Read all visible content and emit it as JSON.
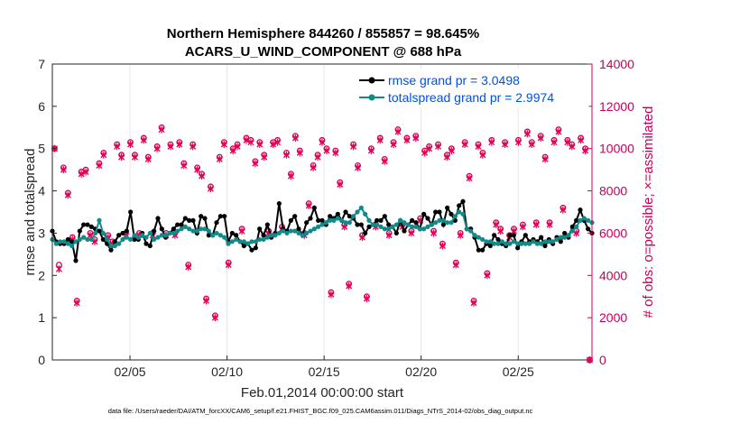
{
  "chart_data": {
    "type": "line",
    "title_line1": "Northern Hemisphere 844260 / 855857 = 98.645%",
    "title_line2": "ACARS_U_WIND_COMPONENT @ 688 hPa",
    "xlabel": "Feb.01,2014 00:00:00 start",
    "ylabel": "rmse and totalspread",
    "y2label": "# of obs: o=possible; ×=assimilated",
    "footnote": "data file: /Users/raeder/DAI/ATM_forcXX/CAM6_setup/f.e21.FHIST_BGC.f09_025.CAM6assim.011/Diags_NTrS_2014-02/obs_diag_output.nc",
    "xlim": [
      1,
      28.8
    ],
    "ylim": [
      0,
      7
    ],
    "y2lim": [
      0,
      14000
    ],
    "x_ticks": [
      5,
      10,
      15,
      20,
      25
    ],
    "x_tick_labels": [
      "02/05",
      "02/10",
      "02/15",
      "02/20",
      "02/25"
    ],
    "y_ticks": [
      "0",
      "1",
      "2",
      "3",
      "4",
      "5",
      "6",
      "7"
    ],
    "y2_ticks": [
      "0",
      "2000",
      "4000",
      "6000",
      "8000",
      "10000",
      "12000",
      "14000"
    ],
    "legend_position": "top-right",
    "series": [
      {
        "name": "rmse grand pr = 3.0498",
        "color": "#000000",
        "values": [
          3.05,
          2.8,
          2.75,
          2.75,
          2.85,
          2.8,
          2.35,
          3.05,
          3.2,
          3.2,
          3.15,
          3.1,
          3.05,
          2.85,
          2.75,
          2.6,
          2.8,
          2.95,
          3.0,
          3.05,
          3.5,
          2.85,
          2.85,
          3.0,
          2.75,
          2.7,
          3.05,
          3.35,
          3.1,
          2.9,
          3.0,
          3.1,
          3.2,
          3.2,
          3.35,
          3.3,
          3.3,
          3.0,
          3.4,
          3.35,
          2.95,
          2.95,
          3.25,
          3.4,
          3.4,
          2.8,
          3.0,
          2.95,
          2.8,
          2.7,
          2.75,
          2.6,
          2.65,
          3.1,
          2.95,
          3.2,
          2.9,
          3.0,
          3.7,
          3.1,
          3.05,
          3.3,
          3.4,
          3.1,
          2.95,
          3.25,
          3.35,
          3.6,
          3.3,
          3.3,
          3.2,
          3.4,
          3.35,
          3.45,
          3.3,
          3.5,
          3.4,
          3.35,
          3.2,
          3.2,
          3.0,
          3.15,
          3.2,
          3.3,
          3.3,
          3.4,
          3.2,
          3.15,
          3.0,
          3.3,
          3.05,
          3.2,
          3.3,
          3.25,
          3.1,
          3.45,
          3.35,
          3.2,
          3.5,
          3.5,
          3.2,
          3.6,
          3.45,
          3.3,
          3.65,
          3.75,
          3.1,
          3.1,
          2.9,
          2.6,
          2.6,
          2.75,
          2.7,
          2.95,
          2.85,
          2.75,
          2.7,
          2.95,
          2.95,
          2.65,
          2.8,
          2.95,
          2.8,
          2.85,
          2.8,
          2.9,
          2.7,
          2.85,
          2.75,
          2.9,
          2.8,
          3.0,
          2.9,
          3.15,
          3.3,
          3.55,
          3.3,
          3.1,
          3.0
        ]
      },
      {
        "name": "totalspread grand pr = 2.9974",
        "color": "#138a8a",
        "values": [
          2.85,
          2.75,
          2.8,
          2.8,
          2.75,
          2.7,
          2.8,
          2.85,
          2.9,
          2.85,
          2.85,
          3.0,
          3.3,
          3.0,
          2.85,
          2.7,
          2.7,
          2.75,
          2.85,
          2.9,
          2.85,
          2.95,
          2.9,
          2.95,
          2.9,
          3.0,
          2.85,
          2.9,
          2.95,
          2.95,
          3.0,
          3.0,
          3.05,
          3.1,
          3.15,
          3.1,
          3.05,
          3.05,
          3.1,
          3.1,
          3.05,
          2.95,
          3.0,
          2.95,
          2.9,
          2.75,
          2.8,
          2.85,
          2.8,
          2.8,
          2.75,
          2.8,
          2.8,
          2.85,
          2.85,
          2.9,
          2.95,
          2.95,
          3.0,
          3.05,
          3.0,
          3.05,
          3.05,
          3.0,
          2.95,
          3.0,
          3.05,
          3.1,
          3.15,
          3.2,
          3.25,
          3.3,
          3.3,
          3.35,
          3.3,
          3.25,
          3.25,
          3.4,
          3.5,
          3.6,
          3.45,
          3.3,
          3.2,
          3.2,
          3.15,
          3.1,
          3.1,
          3.15,
          3.2,
          3.3,
          3.25,
          3.2,
          3.15,
          3.15,
          3.1,
          3.1,
          3.15,
          3.2,
          3.25,
          3.3,
          3.3,
          3.25,
          3.25,
          3.4,
          3.5,
          3.45,
          3.1,
          3.05,
          2.95,
          2.9,
          2.85,
          2.8,
          2.8,
          2.75,
          2.75,
          2.8,
          2.75,
          2.75,
          2.8,
          2.75,
          2.75,
          2.75,
          2.75,
          2.8,
          2.75,
          2.75,
          2.8,
          2.8,
          2.8,
          2.85,
          2.9,
          2.9,
          2.95,
          3.05,
          3.15,
          3.3,
          3.35,
          3.3,
          3.25
        ]
      },
      {
        "name": "possible",
        "color": "#d0005f",
        "values": [
          10000,
          4500,
          9100,
          7900,
          5800,
          2800,
          8900,
          9000,
          6000,
          5700,
          9300,
          9800,
          5900,
          5600,
          10200,
          9700,
          6000,
          10300,
          9700,
          6000,
          10500,
          9600,
          6000,
          10100,
          11000,
          6000,
          10200,
          6000,
          10300,
          9300,
          4500,
          10200,
          9100,
          8800,
          2900,
          8200,
          2100,
          9600,
          10300,
          4600,
          10000,
          10200,
          6200,
          10500,
          10400,
          9400,
          10300,
          9700,
          6100,
          10300,
          10400,
          6300,
          9800,
          8800,
          10600,
          9900,
          6000,
          7400,
          9200,
          9700,
          10400,
          10000,
          3200,
          9900,
          8400,
          6400,
          3600,
          10200,
          9200,
          5900,
          3000,
          10000,
          6400,
          10500,
          9500,
          6000,
          10300,
          10900,
          6400,
          10500,
          6100,
          10600,
          6700,
          9900,
          10100,
          6100,
          10200,
          5500,
          9700,
          10000,
          4600,
          6000,
          10300,
          8700,
          2800,
          10200,
          9800,
          4100,
          10400,
          6500,
          6200,
          10300,
          5900,
          6200,
          10400,
          6400,
          10800,
          10300,
          6500,
          10600,
          9600,
          6500,
          10400,
          10900,
          7200,
          10400,
          10200,
          6100,
          10500,
          10000,
          0
        ]
      },
      {
        "name": "assimilated",
        "color": "#e6004f",
        "values": [
          10000,
          4300,
          9000,
          7800,
          5700,
          2700,
          8800,
          8900,
          5900,
          5600,
          9200,
          9700,
          5800,
          5500,
          10100,
          9600,
          5900,
          10200,
          9600,
          5900,
          10400,
          9500,
          5900,
          10000,
          10900,
          5900,
          10100,
          5900,
          10200,
          9200,
          4400,
          10100,
          9000,
          8700,
          2800,
          8100,
          2000,
          9500,
          10200,
          4500,
          9900,
          10100,
          6100,
          10400,
          10300,
          9300,
          10200,
          9600,
          6000,
          10200,
          10300,
          6200,
          9700,
          8700,
          10500,
          9800,
          5900,
          7300,
          9100,
          9600,
          10300,
          9900,
          3100,
          9800,
          8300,
          6300,
          3500,
          10100,
          9100,
          5800,
          2900,
          9900,
          6300,
          10400,
          9400,
          5900,
          10200,
          10800,
          6300,
          10400,
          6000,
          10500,
          6600,
          9800,
          10000,
          6000,
          10100,
          5400,
          9600,
          9900,
          4500,
          5900,
          10200,
          8600,
          2700,
          10100,
          9700,
          4000,
          10300,
          6400,
          6100,
          10200,
          5800,
          6100,
          10300,
          6300,
          10700,
          10200,
          6400,
          10500,
          9500,
          6400,
          10300,
          10800,
          7100,
          10300,
          10100,
          6000,
          10400,
          9900,
          0
        ]
      }
    ]
  }
}
